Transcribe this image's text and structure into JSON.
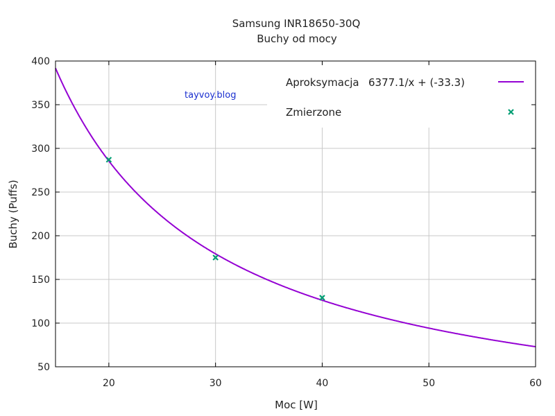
{
  "chart_data": {
    "type": "line",
    "title": "Samsung INR18650-30Q",
    "subtitle": "Buchy od mocy",
    "xlabel": "Moc [W]",
    "ylabel": "Buchy (Puffs)",
    "xlim": [
      15,
      60
    ],
    "ylim": [
      50,
      400
    ],
    "x_ticks": [
      20,
      30,
      40,
      50,
      60
    ],
    "y_ticks": [
      50,
      100,
      150,
      200,
      250,
      300,
      350,
      400
    ],
    "grid": true,
    "legend_position": "top-right",
    "series": [
      {
        "name": "Aproksymacja",
        "formula": "6377.1/x + (-33.3)",
        "kind": "fit-curve",
        "a": 6377.1,
        "b": -33.3,
        "color": "#9400d3"
      },
      {
        "name": "Zmierzone",
        "kind": "points",
        "x": [
          20,
          30,
          40
        ],
        "y": [
          287,
          175,
          129
        ],
        "color": "#009e73"
      }
    ],
    "watermark": "tayvoy.blog"
  }
}
